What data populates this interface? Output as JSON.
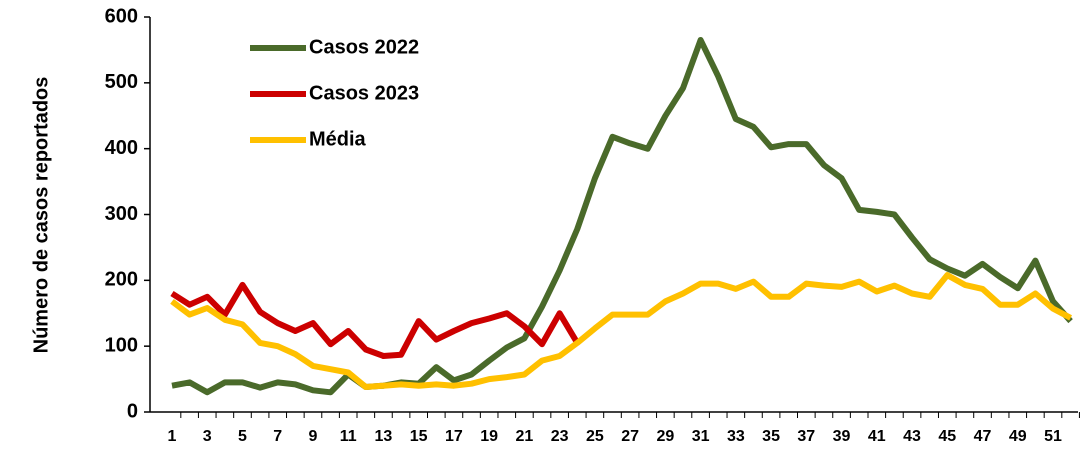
{
  "chart_data": {
    "type": "line",
    "y_label": "Número de casos reportados",
    "categories": [
      "1",
      null,
      "3",
      null,
      "5",
      null,
      "7",
      null,
      "9",
      null,
      "11",
      null,
      "13",
      null,
      "15",
      null,
      "17",
      null,
      "19",
      null,
      "21",
      null,
      "23",
      null,
      "25",
      null,
      "27",
      null,
      "29",
      null,
      "31",
      null,
      "33",
      null,
      "35",
      null,
      "37",
      null,
      "39",
      null,
      "41",
      null,
      "43",
      null,
      "45",
      null,
      "47",
      null,
      "49",
      null,
      "51",
      null
    ],
    "series": [
      {
        "name": "Casos 2022",
        "color": "#4a6a2a",
        "values": [
          40,
          45,
          30,
          45,
          45,
          37,
          45,
          42,
          33,
          30,
          57,
          38,
          40,
          45,
          43,
          68,
          48,
          57,
          78,
          98,
          112,
          160,
          215,
          278,
          355,
          418,
          408,
          400,
          450,
          492,
          565,
          510,
          445,
          433,
          402,
          407,
          407,
          375,
          355,
          307,
          304,
          300,
          265,
          232,
          218,
          207,
          225,
          205,
          188,
          230,
          168,
          138
        ]
      },
      {
        "name": "Casos 2023",
        "color": "#cc0000",
        "values": [
          180,
          163,
          175,
          148,
          193,
          152,
          135,
          123,
          135,
          103,
          123,
          95,
          85,
          87,
          138,
          110,
          123,
          135,
          142,
          150,
          130,
          103,
          150,
          105,
          null,
          null,
          null,
          null,
          null,
          null,
          null,
          null,
          null,
          null,
          null,
          null,
          null,
          null,
          null,
          null,
          null,
          null,
          null,
          null,
          null,
          null,
          null,
          null,
          null,
          null,
          null,
          null
        ]
      },
      {
        "name": "Média",
        "color": "#ffc000",
        "values": [
          168,
          148,
          158,
          140,
          133,
          105,
          100,
          88,
          70,
          65,
          60,
          38,
          40,
          42,
          40,
          42,
          40,
          43,
          50,
          53,
          57,
          78,
          85,
          105,
          127,
          148,
          148,
          148,
          168,
          180,
          195,
          195,
          187,
          198,
          175,
          175,
          195,
          192,
          190,
          198,
          183,
          192,
          180,
          175,
          208,
          193,
          187,
          163,
          163,
          180,
          157,
          143
        ]
      }
    ],
    "ylim": [
      0,
      600
    ],
    "yticks": [
      0,
      100,
      200,
      300,
      400,
      500,
      600
    ],
    "legend": "upper-left"
  }
}
